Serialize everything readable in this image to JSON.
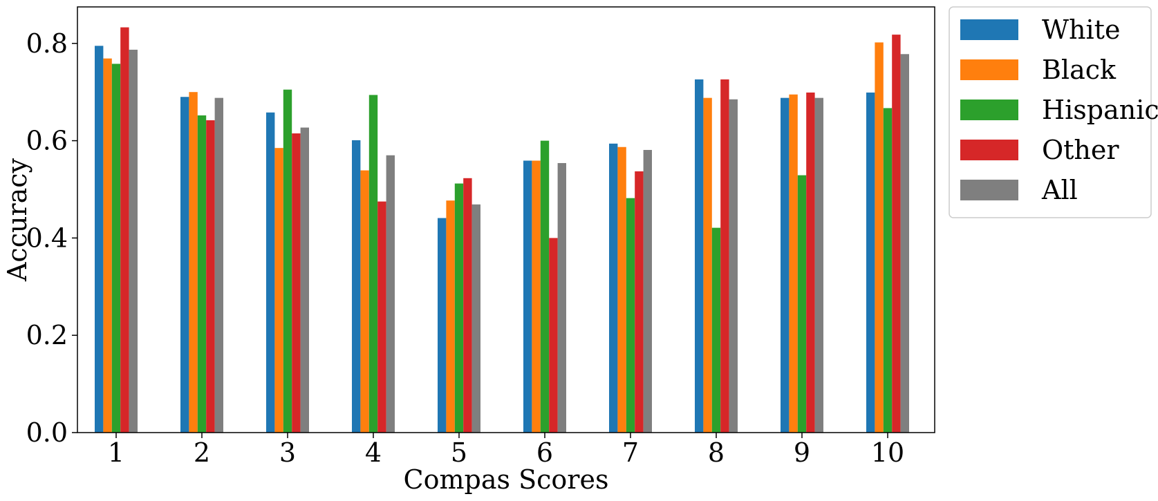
{
  "chart_data": {
    "type": "bar",
    "title": "",
    "xlabel": "Compas Scores",
    "ylabel": "Accuracy",
    "categories": [
      "1",
      "2",
      "3",
      "4",
      "5",
      "6",
      "7",
      "8",
      "9",
      "10"
    ],
    "ylim": [
      0,
      0.875
    ],
    "yticks": [
      "0.0",
      "0.2",
      "0.4",
      "0.6",
      "0.8"
    ],
    "grid": false,
    "legend_position": "outside-top-right",
    "series": [
      {
        "name": "White",
        "color": "#1f77b4",
        "values": [
          0.795,
          0.69,
          0.658,
          0.601,
          0.441,
          0.559,
          0.594,
          0.726,
          0.688,
          0.699
        ]
      },
      {
        "name": "Black",
        "color": "#ff7f0e",
        "values": [
          0.769,
          0.7,
          0.585,
          0.539,
          0.477,
          0.559,
          0.587,
          0.688,
          0.695,
          0.802
        ]
      },
      {
        "name": "Hispanic",
        "color": "#2ca02c",
        "values": [
          0.758,
          0.652,
          0.705,
          0.694,
          0.512,
          0.6,
          0.482,
          0.421,
          0.529,
          0.667
        ]
      },
      {
        "name": "Other",
        "color": "#d62728",
        "values": [
          0.833,
          0.642,
          0.615,
          0.475,
          0.523,
          0.4,
          0.537,
          0.726,
          0.699,
          0.818
        ]
      },
      {
        "name": "All",
        "color": "#7f7f7f",
        "values": [
          0.787,
          0.688,
          0.627,
          0.57,
          0.469,
          0.554,
          0.581,
          0.685,
          0.688,
          0.778
        ]
      }
    ]
  }
}
